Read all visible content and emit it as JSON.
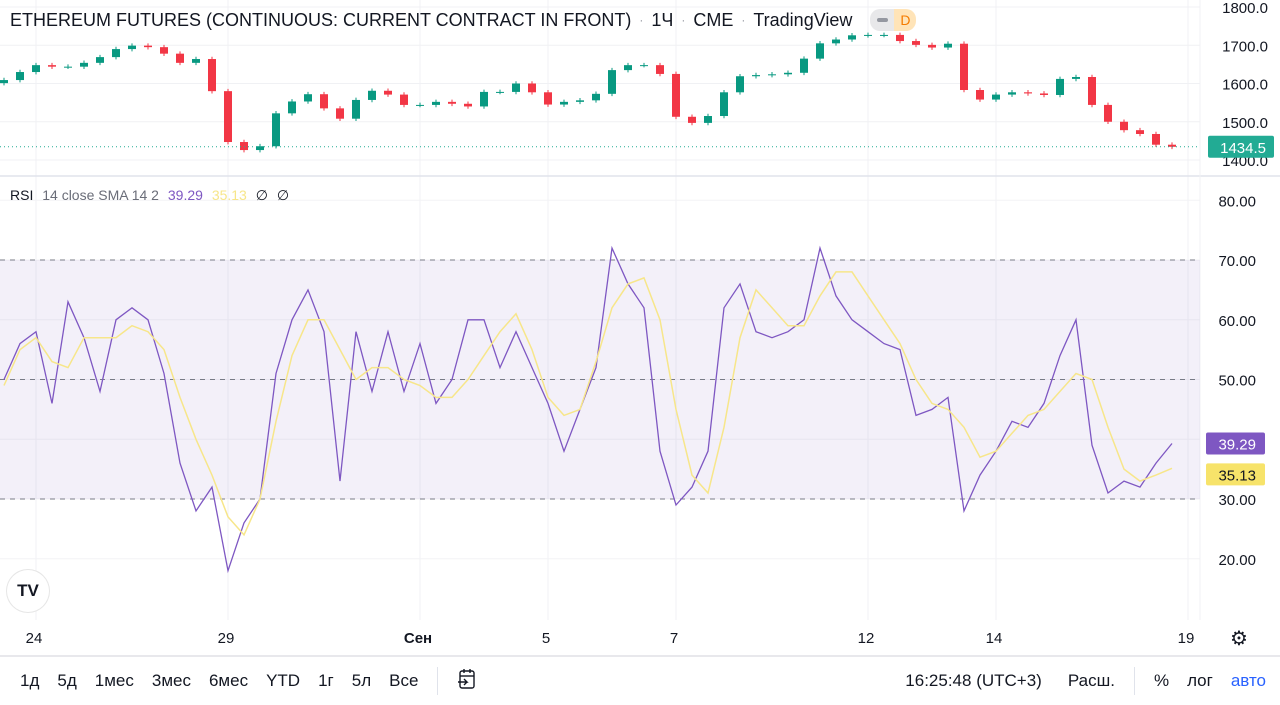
{
  "header": {
    "symbol": "ETHEREUM FUTURES (CONTINUOUS: CURRENT CONTRACT IN FRONT)",
    "interval": "1Ч",
    "exchange": "CME",
    "source": "TradingView",
    "market_status": "D"
  },
  "indicator": {
    "name": "RSI",
    "params": "14 close SMA 14 2",
    "rsi_value": "39.29",
    "sma_value": "35.13",
    "extra1": "∅",
    "extra2": "∅"
  },
  "colors": {
    "up": "#089981",
    "down": "#f23645",
    "rsi": "#7e57c2",
    "sma": "#f7e68a",
    "band": "#7e57c2",
    "last_price": "#22ab94"
  },
  "chart_data": [
    {
      "type": "candlestick",
      "title": "ETHEREUM FUTURES (CONTINUOUS: CURRENT CONTRACT IN FRONT)",
      "y_ticks": [
        "1800.0",
        "1700.0",
        "1600.0",
        "1500.0",
        "1400.0"
      ],
      "ylim": [
        1380,
        1805
      ],
      "last_price": "1434.5",
      "times": [
        "08-23 12:00",
        "08-23 18:00",
        "08-24 00:00",
        "08-24 06:00",
        "08-24 12:00",
        "08-24 18:00",
        "08-25 00:00",
        "08-25 06:00",
        "08-25 12:00",
        "08-25 18:00",
        "08-28 00:00",
        "08-28 06:00",
        "08-28 12:00",
        "08-28 18:00",
        "08-29 00:00",
        "08-29 06:00",
        "08-29 12:00",
        "08-29 18:00",
        "08-30 00:00",
        "08-30 06:00",
        "08-30 12:00",
        "08-30 18:00",
        "08-31 00:00",
        "08-31 06:00",
        "08-31 12:00",
        "08-31 18:00",
        "09-01 00:00",
        "09-01 06:00",
        "09-01 12:00",
        "09-01 18:00",
        "09-04 00:00",
        "09-04 06:00",
        "09-04 12:00",
        "09-04 18:00",
        "09-05 00:00",
        "09-05 06:00",
        "09-05 12:00",
        "09-05 18:00",
        "09-06 00:00",
        "09-06 06:00",
        "09-06 12:00",
        "09-06 18:00",
        "09-07 00:00",
        "09-07 06:00",
        "09-07 12:00",
        "09-07 18:00",
        "09-08 00:00",
        "09-08 06:00",
        "09-08 12:00",
        "09-08 18:00",
        "09-11 00:00",
        "09-11 06:00",
        "09-11 12:00",
        "09-11 18:00",
        "09-12 00:00",
        "09-12 06:00",
        "09-12 12:00",
        "09-12 18:00",
        "09-13 00:00",
        "09-13 06:00",
        "09-13 12:00",
        "09-13 18:00",
        "09-14 00:00",
        "09-14 06:00",
        "09-14 12:00",
        "09-14 18:00",
        "09-15 00:00",
        "09-15 06:00",
        "09-15 12:00",
        "09-15 18:00",
        "09-18 00:00",
        "09-18 06:00",
        "09-18 12:00",
        "09-18 18:00"
      ],
      "close": [
        1609,
        1630,
        1648,
        1644,
        1644,
        1654,
        1669,
        1690,
        1699,
        1695,
        1678,
        1654,
        1664,
        1580,
        1447,
        1426,
        1436,
        1522,
        1553,
        1572,
        1535,
        1508,
        1557,
        1581,
        1571,
        1544,
        1544,
        1552,
        1547,
        1540,
        1578,
        1578,
        1600,
        1577,
        1545,
        1552,
        1556,
        1573,
        1635,
        1648,
        1648,
        1625,
        1513,
        1497,
        1515,
        1577,
        1619,
        1622,
        1624,
        1628,
        1665,
        1705,
        1715,
        1726,
        1727,
        1727,
        1711,
        1701,
        1694,
        1704,
        1583,
        1558,
        1571,
        1577,
        1574,
        1570,
        1612,
        1617,
        1544,
        1500,
        1478,
        1468,
        1440,
        1434.5
      ]
    },
    {
      "type": "line",
      "title": "RSI 14 close SMA 14 2",
      "y_ticks": [
        "80.00",
        "70.00",
        "60.00",
        "50.00",
        "40.00",
        "30.00",
        "20.00"
      ],
      "ylim": [
        15,
        82
      ],
      "bands": {
        "upper": 70,
        "middle": 50,
        "lower": 30
      },
      "x_ticks": [
        {
          "label": "24",
          "date": "08-24 00:00"
        },
        {
          "label": "29",
          "date": "08-29 00:00"
        },
        {
          "label": "Сен",
          "date": "09-01 00:00"
        },
        {
          "label": "5",
          "date": "09-05 00:00"
        },
        {
          "label": "7",
          "date": "09-07 00:00"
        },
        {
          "label": "12",
          "date": "09-12 00:00"
        },
        {
          "label": "14",
          "date": "09-14 00:00"
        },
        {
          "label": "19",
          "date": "09-19 00:00"
        }
      ],
      "series": [
        {
          "name": "RSI",
          "values": [
            50,
            56,
            58,
            46,
            63,
            57,
            48,
            60,
            62,
            60,
            51,
            36,
            28,
            32,
            18,
            26,
            30,
            51,
            60,
            65,
            58,
            33,
            58,
            48,
            58,
            48,
            56,
            46,
            50,
            60,
            60,
            52,
            58,
            52,
            46,
            38,
            45,
            52,
            72,
            66,
            62,
            38,
            29,
            32,
            38,
            62,
            66,
            58,
            57,
            58,
            60,
            72,
            64,
            60,
            58,
            56,
            55,
            44,
            45,
            47,
            28,
            34,
            38,
            43,
            42,
            46,
            54,
            60,
            39,
            31,
            33,
            32,
            36,
            39.29
          ]
        },
        {
          "name": "SMA",
          "values": [
            49,
            55,
            57,
            53,
            52,
            57,
            57,
            57,
            59,
            58,
            55,
            47,
            40,
            34,
            27,
            24,
            30,
            43,
            54,
            60,
            60,
            55,
            50,
            52,
            52,
            50,
            49,
            47,
            47,
            50,
            54,
            58,
            61,
            55,
            47,
            44,
            45,
            53,
            62,
            66,
            67,
            60,
            45,
            34,
            31,
            42,
            57,
            65,
            62,
            59,
            59,
            64,
            68,
            68,
            64,
            60,
            56,
            50,
            46,
            45,
            42,
            37,
            38,
            41,
            44,
            45,
            48,
            51,
            50,
            42,
            35,
            33,
            34,
            35.13
          ]
        }
      ]
    }
  ],
  "footer": {
    "ranges": [
      "1д",
      "5д",
      "1мес",
      "3мес",
      "6мес",
      "YTD",
      "1г",
      "5л",
      "Все"
    ],
    "clock": "16:25:48 (UTC+3)",
    "session": "Расш.",
    "percent": "%",
    "log": "лог",
    "auto": "авто"
  }
}
